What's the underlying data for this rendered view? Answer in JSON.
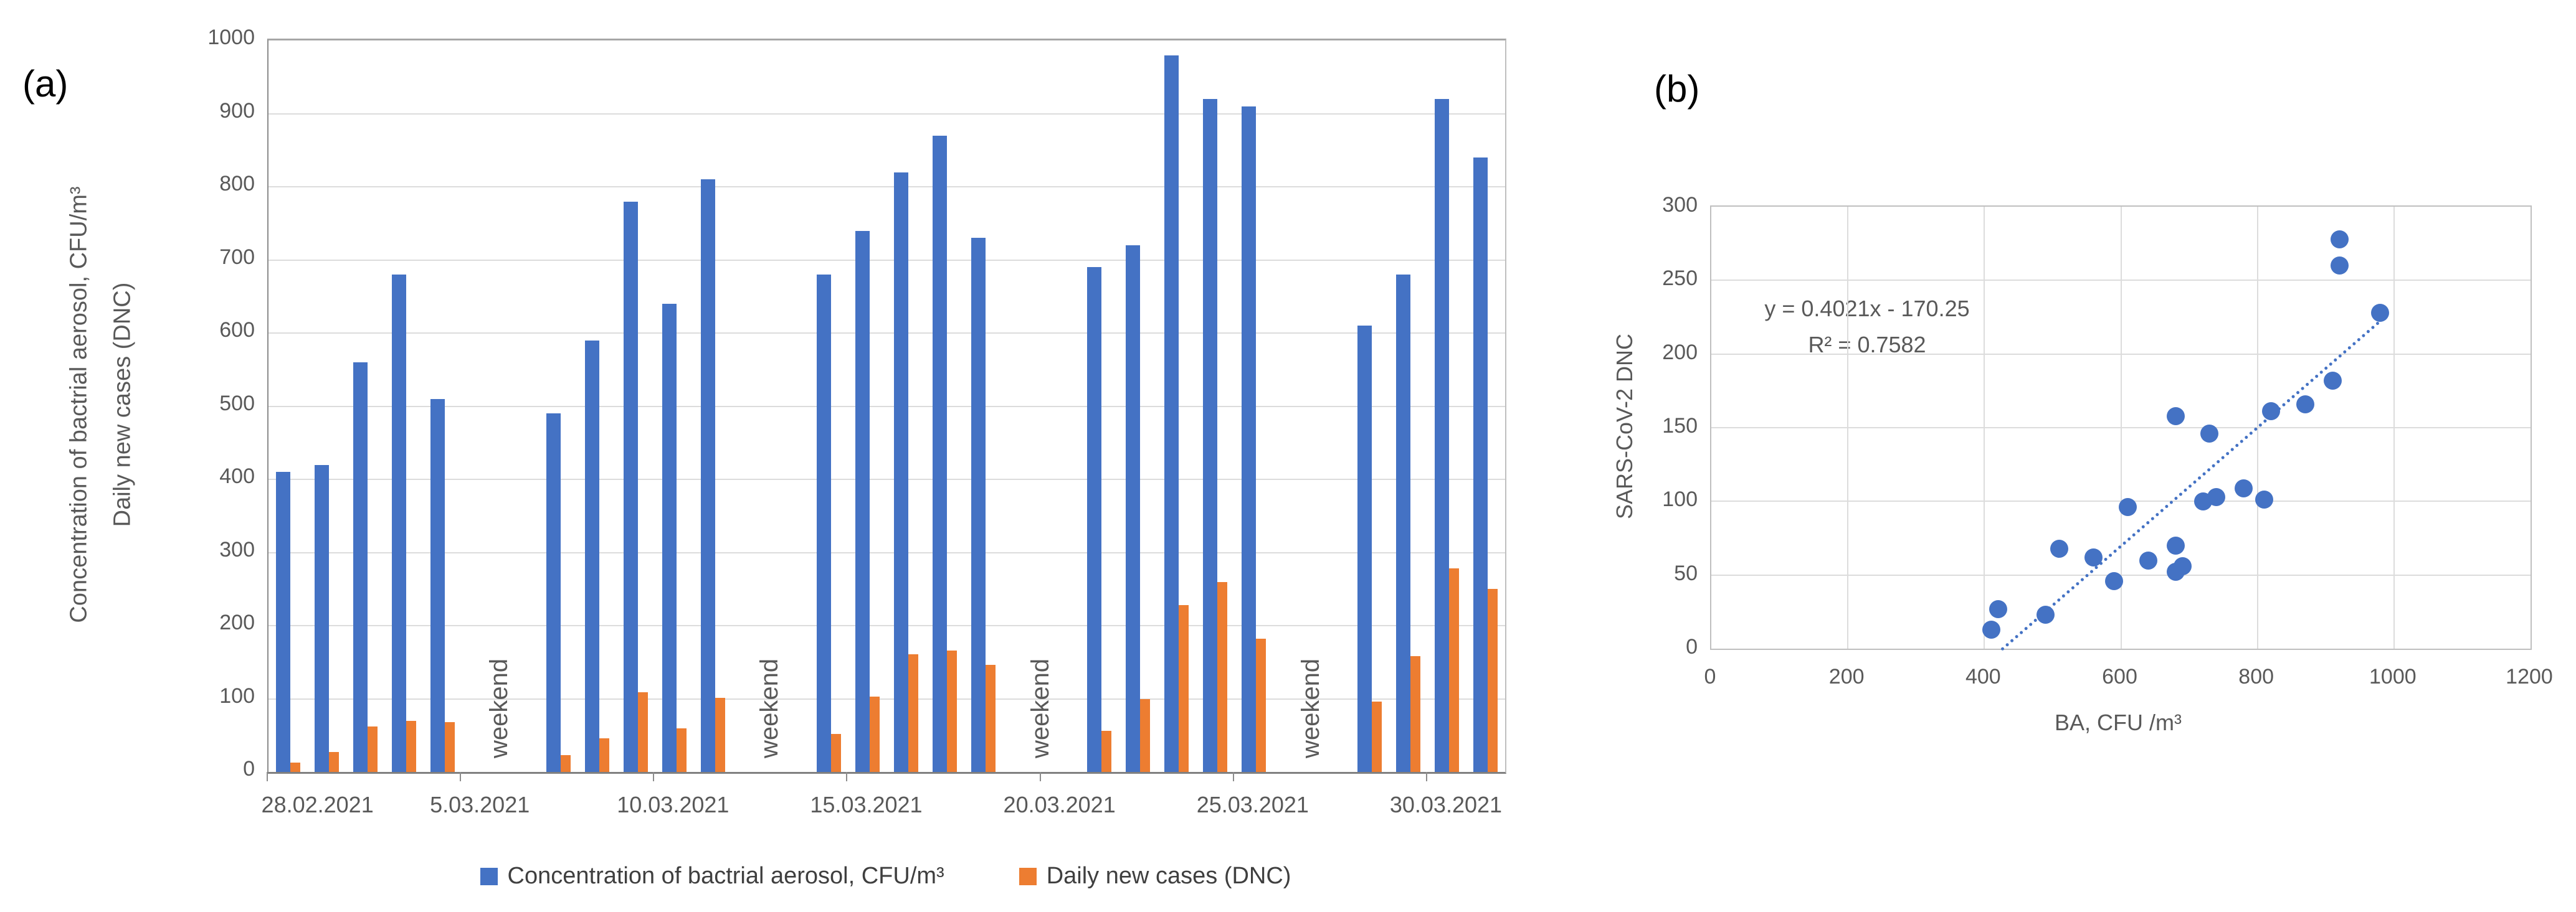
{
  "panels": {
    "a_label": "(a)",
    "b_label": "(b)"
  },
  "colors": {
    "aerosol_blue": "#4472C4",
    "dnc_orange": "#ED7D31",
    "text_gray": "#595959",
    "gridline_gray": "#DCDCDC",
    "border_gray": "#A6A6A6",
    "axis_dark_gray": "#808080"
  },
  "chart_data": [
    {
      "id": "bacterial-aerosol-and-dnc-bars",
      "type": "bar",
      "ylabel_line1": "Concentration of bactrial aerosol, CFU/m³",
      "ylabel_line2": "Daily new cases (DNC)",
      "ylim": [
        0,
        1000
      ],
      "yticks": [
        0,
        100,
        200,
        300,
        400,
        500,
        600,
        700,
        800,
        900,
        1000
      ],
      "grid": "horizontal",
      "legend_position": "bottom",
      "series": [
        {
          "name": "Concentration of bactrial aerosol, CFU/m³",
          "color": "#4472C4"
        },
        {
          "name": "Daily new cases (DNC)",
          "color": "#ED7D31"
        }
      ],
      "x_axis": {
        "kind": "date",
        "total_day_slots": 32,
        "tick_days": [
          0,
          5,
          10,
          15,
          20,
          25,
          30
        ],
        "tick_labels": [
          "28.02.2021",
          "5.03.2021",
          "10.03.2021",
          "15.03.2021",
          "20.03.2021",
          "25.03.2021",
          "30.03.2021"
        ],
        "label_day_positions": [
          1.3,
          5.5,
          10.5,
          15.5,
          20.5,
          25.5,
          30.5
        ]
      },
      "weekend_label": "weekend",
      "weekend_center_days": [
        6,
        13,
        20,
        27
      ],
      "bars": [
        {
          "date": "1.03.2021",
          "slot": 0,
          "aerosol": 410,
          "dnc": 13
        },
        {
          "date": "2.03.2021",
          "slot": 1,
          "aerosol": 420,
          "dnc": 27
        },
        {
          "date": "3.03.2021",
          "slot": 2,
          "aerosol": 560,
          "dnc": 62
        },
        {
          "date": "4.03.2021",
          "slot": 3,
          "aerosol": 680,
          "dnc": 70
        },
        {
          "date": "5.03.2021",
          "slot": 4,
          "aerosol": 510,
          "dnc": 68
        },
        {
          "date": "8.03.2021",
          "slot": 7,
          "aerosol": 490,
          "dnc": 23
        },
        {
          "date": "9.03.2021",
          "slot": 8,
          "aerosol": 590,
          "dnc": 46
        },
        {
          "date": "10.03.2021",
          "slot": 9,
          "aerosol": 780,
          "dnc": 109
        },
        {
          "date": "11.03.2021",
          "slot": 10,
          "aerosol": 640,
          "dnc": 60
        },
        {
          "date": "12.03.2021",
          "slot": 11,
          "aerosol": 810,
          "dnc": 101
        },
        {
          "date": "15.03.2021",
          "slot": 14,
          "aerosol": 680,
          "dnc": 52
        },
        {
          "date": "16.03.2021",
          "slot": 15,
          "aerosol": 740,
          "dnc": 103
        },
        {
          "date": "17.03.2021",
          "slot": 16,
          "aerosol": 820,
          "dnc": 161
        },
        {
          "date": "18.03.2021",
          "slot": 17,
          "aerosol": 870,
          "dnc": 166
        },
        {
          "date": "19.03.2021",
          "slot": 18,
          "aerosol": 730,
          "dnc": 146
        },
        {
          "date": "22.03.2021",
          "slot": 21,
          "aerosol": 690,
          "dnc": 56
        },
        {
          "date": "23.03.2021",
          "slot": 22,
          "aerosol": 720,
          "dnc": 100
        },
        {
          "date": "24.03.2021",
          "slot": 23,
          "aerosol": 980,
          "dnc": 228
        },
        {
          "date": "25.03.2021",
          "slot": 24,
          "aerosol": 920,
          "dnc": 260
        },
        {
          "date": "26.03.2021",
          "slot": 25,
          "aerosol": 910,
          "dnc": 182
        },
        {
          "date": "29.03.2021",
          "slot": 28,
          "aerosol": 610,
          "dnc": 96
        },
        {
          "date": "30.03.2021",
          "slot": 29,
          "aerosol": 680,
          "dnc": 158
        },
        {
          "date": "31.03.2021",
          "slot": 30,
          "aerosol": 920,
          "dnc": 278
        },
        {
          "date": "1.04.2021",
          "slot": 31,
          "aerosol": 840,
          "dnc": 250
        }
      ]
    },
    {
      "id": "sars-cov-2-dnc-vs-ba-scatter",
      "type": "scatter",
      "xlabel": "BA, CFU /m³",
      "ylabel": "SARS-CoV-2 DNC",
      "xlim": [
        0,
        1200
      ],
      "ylim": [
        0,
        300
      ],
      "xticks": [
        0,
        200,
        400,
        600,
        800,
        1000,
        1200
      ],
      "yticks": [
        0,
        50,
        100,
        150,
        200,
        250,
        300
      ],
      "grid": "both",
      "equation": "y = 0.4021x - 170.25",
      "r_squared": "R² = 0.7582",
      "marker_color": "#4472C4",
      "trendline": {
        "style": "dotted",
        "color": "#4472C4",
        "x_start": 423,
        "y_start": 0,
        "x_end": 990,
        "y_end": 228
      },
      "points": [
        [
          410,
          13
        ],
        [
          420,
          27
        ],
        [
          490,
          23
        ],
        [
          510,
          68
        ],
        [
          560,
          62
        ],
        [
          590,
          46
        ],
        [
          610,
          96
        ],
        [
          640,
          60
        ],
        [
          680,
          70
        ],
        [
          680,
          52
        ],
        [
          690,
          56
        ],
        [
          680,
          158
        ],
        [
          720,
          100
        ],
        [
          730,
          146
        ],
        [
          740,
          103
        ],
        [
          780,
          109
        ],
        [
          810,
          101
        ],
        [
          820,
          161
        ],
        [
          870,
          166
        ],
        [
          910,
          182
        ],
        [
          920,
          260
        ],
        [
          920,
          278
        ],
        [
          980,
          228
        ]
      ]
    }
  ]
}
